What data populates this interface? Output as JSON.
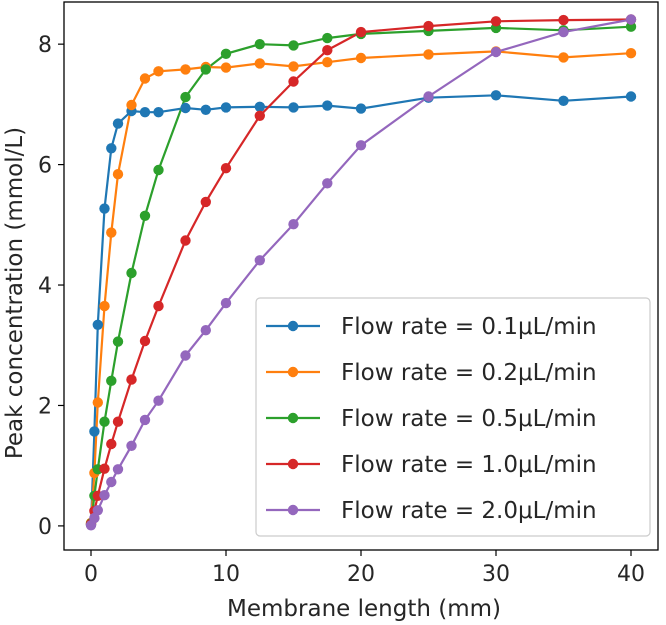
{
  "chart_data": {
    "type": "line",
    "xlabel": "Membrane length (mm)",
    "ylabel": "Peak concentration (mmol/L)",
    "xlim": [
      -2,
      42
    ],
    "ylim": [
      -0.4,
      8.7
    ],
    "xticks": [
      "0",
      "10",
      "20",
      "30",
      "40"
    ],
    "xtick_values": [
      0,
      10,
      20,
      30,
      40
    ],
    "yticks": [
      "0",
      "2",
      "4",
      "6",
      "8"
    ],
    "ytick_values": [
      0,
      2,
      4,
      6,
      8
    ],
    "grid": false,
    "legend_position": "bottom-right",
    "series": [
      {
        "name": "Flow rate = 0.1μL/min",
        "color": "#1f77b4",
        "x": [
          0,
          0.25,
          0.5,
          1,
          1.5,
          2,
          3,
          4,
          5,
          7,
          8.5,
          10,
          12.5,
          15,
          17.5,
          20,
          25,
          30,
          35,
          40
        ],
        "y": [
          0.02,
          1.57,
          3.34,
          5.27,
          6.27,
          6.68,
          6.89,
          6.87,
          6.87,
          6.94,
          6.91,
          6.95,
          6.96,
          6.95,
          6.98,
          6.93,
          7.11,
          7.15,
          7.06,
          7.13
        ]
      },
      {
        "name": "Flow rate = 0.2μL/min",
        "color": "#ff7f0e",
        "x": [
          0,
          0.25,
          0.5,
          1,
          1.5,
          2,
          3,
          4,
          5,
          7,
          8.5,
          10,
          12.5,
          15,
          17.5,
          20,
          25,
          30,
          35,
          40
        ],
        "y": [
          0.05,
          0.88,
          2.05,
          3.65,
          4.87,
          5.84,
          6.99,
          7.43,
          7.55,
          7.58,
          7.62,
          7.61,
          7.68,
          7.63,
          7.7,
          7.77,
          7.83,
          7.88,
          7.78,
          7.85
        ]
      },
      {
        "name": "Flow rate = 0.5μL/min",
        "color": "#2ca02c",
        "x": [
          0,
          0.25,
          0.5,
          1,
          1.5,
          2,
          3,
          4,
          5,
          7,
          8.5,
          10,
          12.5,
          15,
          17.5,
          20,
          25,
          30,
          35,
          40
        ],
        "y": [
          0.04,
          0.5,
          0.94,
          1.73,
          2.41,
          3.06,
          4.2,
          5.15,
          5.91,
          7.12,
          7.58,
          7.84,
          8.0,
          7.98,
          8.1,
          8.17,
          8.22,
          8.27,
          8.23,
          8.29
        ]
      },
      {
        "name": "Flow rate = 1.0μL/min",
        "color": "#d62728",
        "x": [
          0,
          0.25,
          0.5,
          1,
          1.5,
          2,
          3,
          4,
          5,
          7,
          8.5,
          10,
          12.5,
          15,
          17.5,
          20,
          25,
          30,
          35,
          40
        ],
        "y": [
          0.03,
          0.25,
          0.5,
          0.95,
          1.36,
          1.73,
          2.43,
          3.07,
          3.65,
          4.74,
          5.38,
          5.94,
          6.81,
          7.38,
          7.9,
          8.2,
          8.3,
          8.38,
          8.4,
          8.41
        ]
      },
      {
        "name": "Flow rate = 2.0μL/min",
        "color": "#9467bd",
        "x": [
          0,
          0.25,
          0.5,
          1,
          1.5,
          2,
          3,
          4,
          5,
          7,
          8.5,
          10,
          12.5,
          15,
          17.5,
          20,
          25,
          30,
          35,
          40
        ],
        "y": [
          0.01,
          0.13,
          0.26,
          0.51,
          0.73,
          0.94,
          1.33,
          1.76,
          2.08,
          2.83,
          3.25,
          3.7,
          4.41,
          5.01,
          5.69,
          6.32,
          7.13,
          7.87,
          8.2,
          8.41
        ]
      }
    ]
  }
}
